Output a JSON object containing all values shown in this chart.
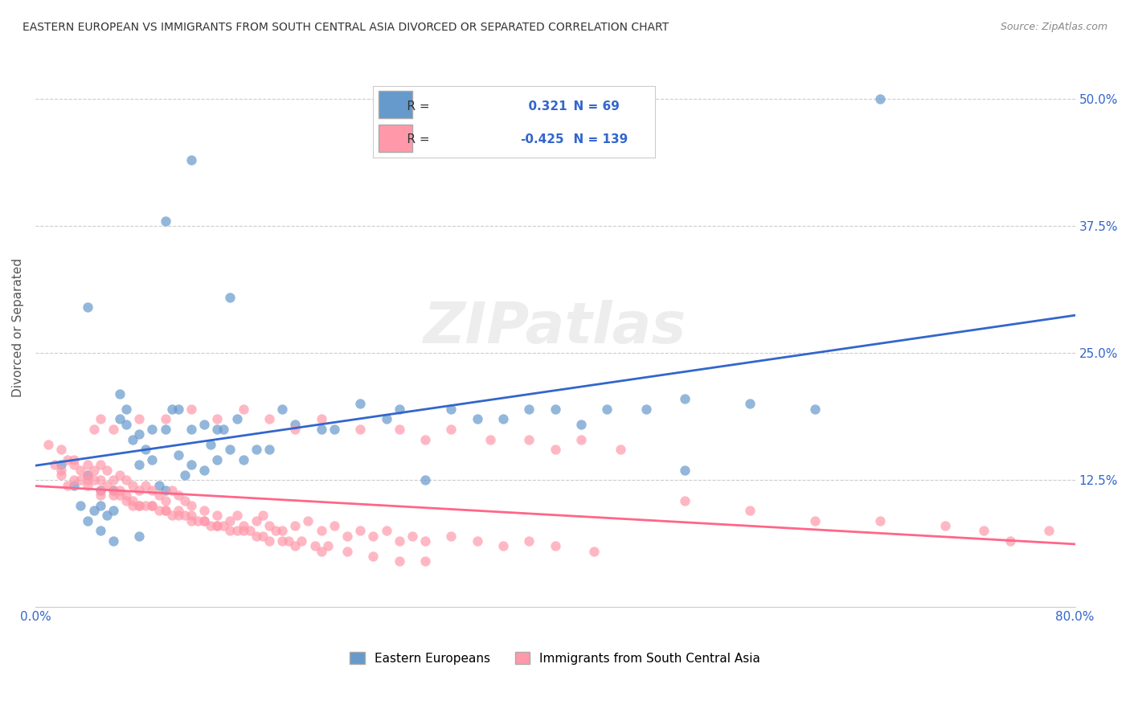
{
  "title": "EASTERN EUROPEAN VS IMMIGRANTS FROM SOUTH CENTRAL ASIA DIVORCED OR SEPARATED CORRELATION CHART",
  "source": "Source: ZipAtlas.com",
  "xlabel_ticks": [
    "0.0%",
    "80.0%"
  ],
  "ylabel_label": "Divorced or Separated",
  "ytick_labels": [
    "12.5%",
    "25.0%",
    "37.5%",
    "50.0%"
  ],
  "ytick_values": [
    0.125,
    0.25,
    0.375,
    0.5
  ],
  "xlim": [
    0.0,
    0.8
  ],
  "ylim": [
    0.0,
    0.55
  ],
  "legend_label1": "Eastern Europeans",
  "legend_label2": "Immigrants from South Central Asia",
  "r1": 0.321,
  "n1": 69,
  "r2": -0.425,
  "n2": 139,
  "color_blue": "#6699CC",
  "color_pink": "#FF99AA",
  "line_color_blue": "#3366CC",
  "line_color_pink": "#FF6688",
  "watermark": "ZIPatlas",
  "title_fontsize": 11,
  "source_fontsize": 9,
  "background_color": "#FFFFFF",
  "grid_color": "#CCCCCC",
  "blue_scatter_x": [
    0.02,
    0.03,
    0.035,
    0.04,
    0.04,
    0.045,
    0.05,
    0.05,
    0.055,
    0.06,
    0.06,
    0.065,
    0.065,
    0.07,
    0.07,
    0.075,
    0.08,
    0.08,
    0.085,
    0.09,
    0.09,
    0.095,
    0.1,
    0.1,
    0.105,
    0.11,
    0.11,
    0.115,
    0.12,
    0.12,
    0.13,
    0.13,
    0.135,
    0.14,
    0.14,
    0.145,
    0.15,
    0.155,
    0.16,
    0.17,
    0.18,
    0.19,
    0.2,
    0.22,
    0.23,
    0.25,
    0.27,
    0.28,
    0.3,
    0.32,
    0.34,
    0.36,
    0.38,
    0.4,
    0.42,
    0.44,
    0.47,
    0.5,
    0.55,
    0.6,
    0.04,
    0.05,
    0.06,
    0.08,
    0.1,
    0.12,
    0.15,
    0.5,
    0.65
  ],
  "blue_scatter_y": [
    0.14,
    0.12,
    0.1,
    0.085,
    0.13,
    0.095,
    0.1,
    0.115,
    0.09,
    0.115,
    0.095,
    0.21,
    0.185,
    0.18,
    0.195,
    0.165,
    0.14,
    0.17,
    0.155,
    0.175,
    0.145,
    0.12,
    0.175,
    0.115,
    0.195,
    0.15,
    0.195,
    0.13,
    0.14,
    0.175,
    0.18,
    0.135,
    0.16,
    0.145,
    0.175,
    0.175,
    0.155,
    0.185,
    0.145,
    0.155,
    0.155,
    0.195,
    0.18,
    0.175,
    0.175,
    0.2,
    0.185,
    0.195,
    0.125,
    0.195,
    0.185,
    0.185,
    0.195,
    0.195,
    0.18,
    0.195,
    0.195,
    0.205,
    0.2,
    0.195,
    0.295,
    0.075,
    0.065,
    0.07,
    0.38,
    0.44,
    0.305,
    0.135,
    0.5
  ],
  "pink_scatter_x": [
    0.01,
    0.015,
    0.02,
    0.02,
    0.025,
    0.025,
    0.03,
    0.03,
    0.035,
    0.035,
    0.04,
    0.04,
    0.04,
    0.045,
    0.045,
    0.05,
    0.05,
    0.05,
    0.055,
    0.055,
    0.06,
    0.06,
    0.065,
    0.065,
    0.07,
    0.07,
    0.075,
    0.075,
    0.08,
    0.08,
    0.085,
    0.09,
    0.09,
    0.095,
    0.1,
    0.1,
    0.105,
    0.11,
    0.11,
    0.115,
    0.12,
    0.12,
    0.13,
    0.13,
    0.14,
    0.14,
    0.15,
    0.155,
    0.16,
    0.17,
    0.175,
    0.18,
    0.19,
    0.2,
    0.21,
    0.22,
    0.23,
    0.24,
    0.25,
    0.26,
    0.27,
    0.28,
    0.29,
    0.3,
    0.32,
    0.34,
    0.36,
    0.38,
    0.4,
    0.43,
    0.045,
    0.05,
    0.06,
    0.08,
    0.1,
    0.12,
    0.14,
    0.16,
    0.18,
    0.2,
    0.22,
    0.25,
    0.28,
    0.3,
    0.32,
    0.35,
    0.38,
    0.4,
    0.42,
    0.45,
    0.5,
    0.55,
    0.6,
    0.065,
    0.075,
    0.085,
    0.095,
    0.105,
    0.115,
    0.125,
    0.135,
    0.145,
    0.155,
    0.165,
    0.175,
    0.185,
    0.195,
    0.205,
    0.215,
    0.225,
    0.02,
    0.03,
    0.04,
    0.05,
    0.06,
    0.07,
    0.08,
    0.09,
    0.1,
    0.11,
    0.12,
    0.13,
    0.14,
    0.15,
    0.16,
    0.17,
    0.18,
    0.19,
    0.2,
    0.22,
    0.24,
    0.26,
    0.28,
    0.3,
    0.65,
    0.7,
    0.73,
    0.75,
    0.78
  ],
  "pink_scatter_y": [
    0.16,
    0.14,
    0.155,
    0.13,
    0.145,
    0.12,
    0.145,
    0.14,
    0.135,
    0.125,
    0.14,
    0.13,
    0.12,
    0.135,
    0.125,
    0.14,
    0.125,
    0.11,
    0.135,
    0.12,
    0.125,
    0.115,
    0.13,
    0.115,
    0.125,
    0.11,
    0.12,
    0.105,
    0.115,
    0.1,
    0.12,
    0.115,
    0.1,
    0.11,
    0.105,
    0.095,
    0.115,
    0.11,
    0.095,
    0.105,
    0.1,
    0.09,
    0.095,
    0.085,
    0.09,
    0.08,
    0.085,
    0.09,
    0.08,
    0.085,
    0.09,
    0.08,
    0.075,
    0.08,
    0.085,
    0.075,
    0.08,
    0.07,
    0.075,
    0.07,
    0.075,
    0.065,
    0.07,
    0.065,
    0.07,
    0.065,
    0.06,
    0.065,
    0.06,
    0.055,
    0.175,
    0.185,
    0.175,
    0.185,
    0.185,
    0.195,
    0.185,
    0.195,
    0.185,
    0.175,
    0.185,
    0.175,
    0.175,
    0.165,
    0.175,
    0.165,
    0.165,
    0.155,
    0.165,
    0.155,
    0.105,
    0.095,
    0.085,
    0.11,
    0.1,
    0.1,
    0.095,
    0.09,
    0.09,
    0.085,
    0.08,
    0.08,
    0.075,
    0.075,
    0.07,
    0.075,
    0.065,
    0.065,
    0.06,
    0.06,
    0.135,
    0.125,
    0.125,
    0.115,
    0.11,
    0.105,
    0.1,
    0.1,
    0.095,
    0.09,
    0.085,
    0.085,
    0.08,
    0.075,
    0.075,
    0.07,
    0.065,
    0.065,
    0.06,
    0.055,
    0.055,
    0.05,
    0.045,
    0.045,
    0.085,
    0.08,
    0.075,
    0.065,
    0.075
  ]
}
